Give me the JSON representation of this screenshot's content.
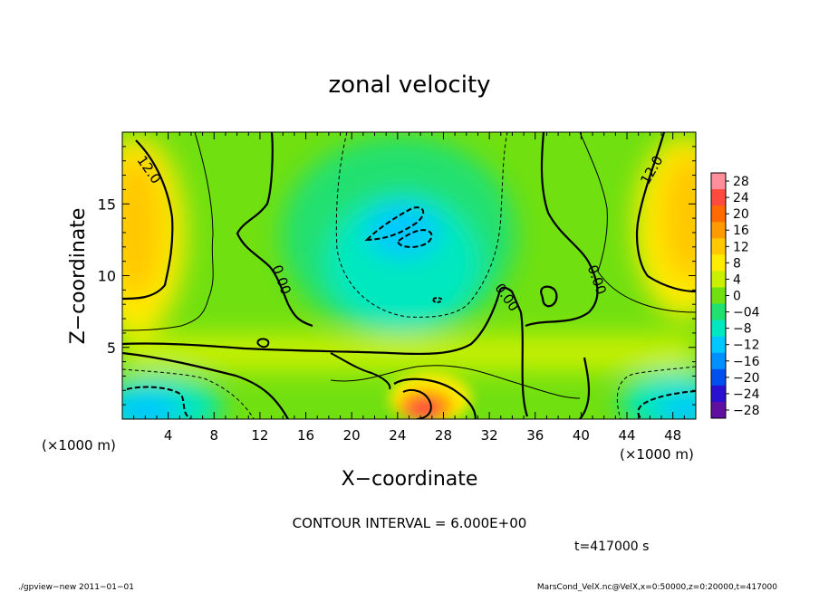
{
  "chart_data": {
    "type": "heatmap",
    "title": "zonal velocity",
    "xlabel": "X−coordinate",
    "ylabel": "Z−coordinate",
    "x_unit_label": "(×1000 m)",
    "y_unit_label": "(×1000 m)",
    "xlim": [
      0,
      50
    ],
    "ylim": [
      0,
      20
    ],
    "x_ticks": [
      4,
      8,
      12,
      16,
      20,
      24,
      28,
      32,
      36,
      40,
      44,
      48
    ],
    "y_ticks": [
      5,
      10,
      15
    ],
    "colorbar": {
      "levels": [
        28,
        24,
        20,
        16,
        12,
        8,
        4,
        0,
        -4,
        -8,
        -12,
        -16,
        -20,
        -24,
        -28
      ],
      "labels": [
        "28",
        "24",
        "20",
        "16",
        "12",
        "8",
        "4",
        "0",
        "−04",
        "−8",
        "−12",
        "−16",
        "−20",
        "−24",
        "−28"
      ],
      "colors": [
        "#ff8e9c",
        "#ff4a3e",
        "#ff6a00",
        "#ff9a00",
        "#ffc800",
        "#ffec00",
        "#c8f000",
        "#70e010",
        "#20e070",
        "#00e8c0",
        "#00c8ff",
        "#0090ff",
        "#0050f0",
        "#2a10d0",
        "#6010a0"
      ]
    },
    "contour_labels": [
      {
        "text": "12.0",
        "x": 2.0,
        "z": 17.2,
        "angle": 55
      },
      {
        "text": "12.0",
        "x": 46.5,
        "z": 17.2,
        "angle": -60
      },
      {
        "text": "0.00",
        "x": 13.5,
        "z": 9.6,
        "angle": 70
      },
      {
        "text": "0.00",
        "x": 33.2,
        "z": 8.3,
        "angle": 55
      },
      {
        "text": "0.00",
        "x": 41.0,
        "z": 9.6,
        "angle": 70
      }
    ],
    "contour_interval_text": "CONTOUR INTERVAL = 6.000E+00",
    "time_text": "t=417000  s"
  },
  "footer": {
    "left": "./gpview−new   2011−01−01",
    "right": "MarsCond_VelX.nc@VelX,x=0:50000,z=0:20000,t=417000"
  }
}
